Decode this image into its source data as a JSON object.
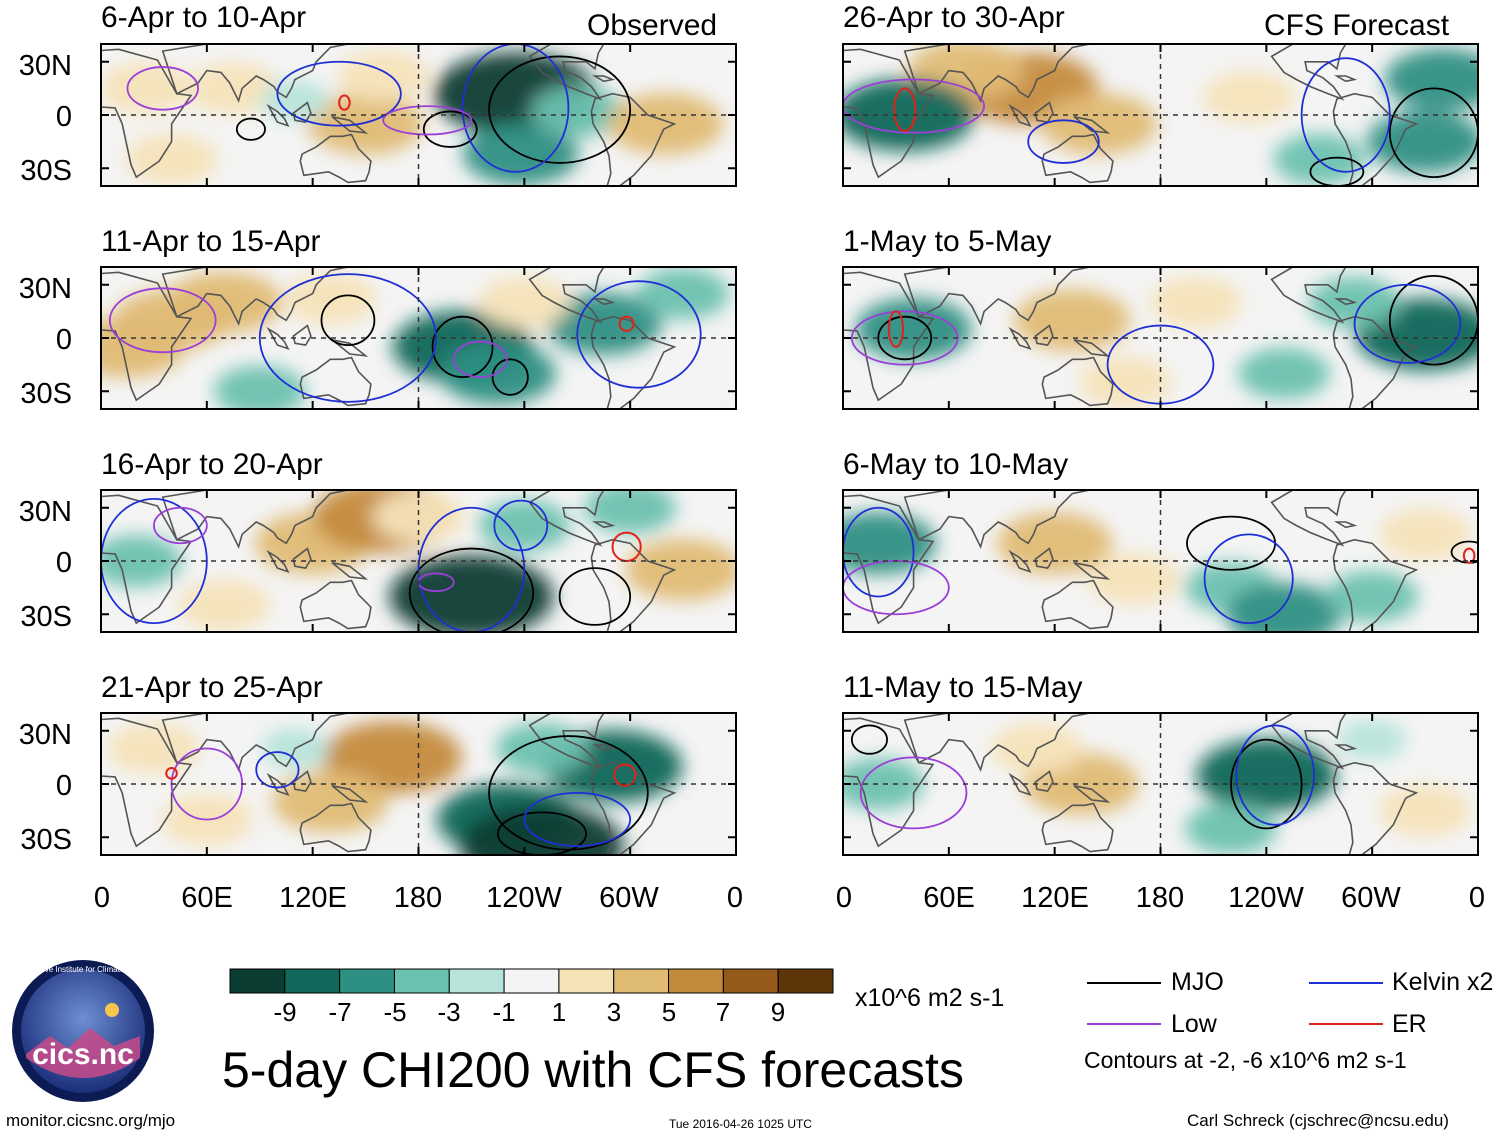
{
  "figure_title": "5-day CHI200 with CFS forecasts",
  "left_column_label": "Observed",
  "right_column_label": "CFS Forecast",
  "units_label": "x10^6 m2 s-1",
  "footer": {
    "url": "monitor.cicsnc.org/mjo",
    "timestamp": "Tue 2016-04-26 1025 UTC",
    "author": "Carl Schreck (cjschrec@ncsu.edu)"
  },
  "logo": {
    "text": "cics.nc",
    "ring_text": "Cooperative Institute for Climate and Satellites"
  },
  "legend": {
    "items": [
      {
        "label": "MJO",
        "color": "#000000"
      },
      {
        "label": "Kelvin x2",
        "color": "#1f2fd6"
      },
      {
        "label": "Low",
        "color": "#9b3fd8"
      },
      {
        "label": "ER",
        "color": "#e0221a"
      }
    ],
    "note": "Contours at -2, -6 x10^6 m2 s-1"
  },
  "colors": {
    "land": "#555555",
    "equator": "#333333",
    "colorbar": [
      "#0b3d33",
      "#11675a",
      "#2e8f83",
      "#6bc1b0",
      "#b6e4da",
      "#f4f4f4",
      "#f5e3b8",
      "#e0bb74",
      "#c48a3c",
      "#955a19",
      "#5e3409"
    ]
  },
  "chart_data": {
    "type": "heatmap",
    "variable": "CHI200 (200-hPa velocity potential anomaly)",
    "x_tick_labels": [
      "0",
      "60E",
      "120E",
      "180",
      "120W",
      "60W",
      "0"
    ],
    "x_tick_values_deg_east": [
      0,
      60,
      120,
      180,
      240,
      300,
      360
    ],
    "y_tick_labels": [
      "30N",
      "0",
      "30S"
    ],
    "y_tick_values_deg": [
      30,
      0,
      -30
    ],
    "ylim": [
      -40,
      40
    ],
    "xlim": [
      0,
      360
    ],
    "colorbar": {
      "tick_labels": [
        "-9",
        "-7",
        "-5",
        "-3",
        "-1",
        "1",
        "3",
        "5",
        "7",
        "9"
      ],
      "levels": [
        -9,
        -7,
        -5,
        -3,
        -1,
        1,
        3,
        5,
        7,
        9
      ]
    },
    "panels": [
      {
        "title": "6-Apr to 10-Apr",
        "column": "Observed",
        "anomalies": [
          {
            "lon": 25,
            "lat": 15,
            "value": 3
          },
          {
            "lon": 75,
            "lat": 15,
            "value": 3
          },
          {
            "lon": 150,
            "lat": -5,
            "value": 5
          },
          {
            "lon": 160,
            "lat": 22,
            "value": 3
          },
          {
            "lon": 235,
            "lat": 12,
            "value": -9
          },
          {
            "lon": 238,
            "lat": -22,
            "value": -5
          },
          {
            "lon": 270,
            "lat": 2,
            "value": -3
          },
          {
            "lon": 320,
            "lat": -5,
            "value": 5
          },
          {
            "lon": 110,
            "lat": 8,
            "value": -1
          },
          {
            "lon": 40,
            "lat": -25,
            "value": 3
          }
        ],
        "contours": [
          {
            "type": "MJO",
            "lon": 260,
            "lat": 3,
            "rx": 40,
            "ry": 30
          },
          {
            "type": "MJO",
            "lon": 198,
            "lat": -8,
            "rx": 15,
            "ry": 10
          },
          {
            "type": "MJO",
            "lon": 85,
            "lat": -8,
            "rx": 8,
            "ry": 6
          },
          {
            "type": "Kelvin",
            "lon": 235,
            "lat": 4,
            "rx": 30,
            "ry": 36
          },
          {
            "type": "Kelvin",
            "lon": 135,
            "lat": 12,
            "rx": 35,
            "ry": 18
          },
          {
            "type": "Low",
            "lon": 185,
            "lat": -3,
            "rx": 25,
            "ry": 8
          },
          {
            "type": "Low",
            "lon": 35,
            "lat": 15,
            "rx": 20,
            "ry": 12
          },
          {
            "type": "ER",
            "lon": 138,
            "lat": 7,
            "rx": 3,
            "ry": 4
          }
        ]
      },
      {
        "title": "11-Apr to 15-Apr",
        "column": "Observed",
        "anomalies": [
          {
            "lon": 40,
            "lat": 10,
            "value": 5
          },
          {
            "lon": 70,
            "lat": 20,
            "value": 5
          },
          {
            "lon": 15,
            "lat": -5,
            "value": 5
          },
          {
            "lon": 130,
            "lat": 22,
            "value": 3
          },
          {
            "lon": 205,
            "lat": -5,
            "value": -7
          },
          {
            "lon": 225,
            "lat": -20,
            "value": -5
          },
          {
            "lon": 285,
            "lat": 8,
            "value": -5
          },
          {
            "lon": 330,
            "lat": 25,
            "value": -3
          },
          {
            "lon": 90,
            "lat": -30,
            "value": -3
          },
          {
            "lon": 240,
            "lat": 20,
            "value": 3
          }
        ],
        "contours": [
          {
            "type": "MJO",
            "lon": 205,
            "lat": -5,
            "rx": 17,
            "ry": 17
          },
          {
            "type": "MJO",
            "lon": 140,
            "lat": 10,
            "rx": 15,
            "ry": 14
          },
          {
            "type": "MJO",
            "lon": 232,
            "lat": -22,
            "rx": 10,
            "ry": 10
          },
          {
            "type": "Kelvin",
            "lon": 305,
            "lat": 2,
            "rx": 35,
            "ry": 30
          },
          {
            "type": "Kelvin",
            "lon": 140,
            "lat": 0,
            "rx": 50,
            "ry": 36
          },
          {
            "type": "Low",
            "lon": 215,
            "lat": -12,
            "rx": 15,
            "ry": 10
          },
          {
            "type": "Low",
            "lon": 35,
            "lat": 10,
            "rx": 30,
            "ry": 18
          },
          {
            "type": "ER",
            "lon": 298,
            "lat": 8,
            "rx": 4,
            "ry": 4
          }
        ]
      },
      {
        "title": "16-Apr to 20-Apr",
        "column": "Observed",
        "anomalies": [
          {
            "lon": 120,
            "lat": 10,
            "value": 5
          },
          {
            "lon": 160,
            "lat": 25,
            "value": 7
          },
          {
            "lon": 210,
            "lat": -20,
            "value": -9
          },
          {
            "lon": 240,
            "lat": 20,
            "value": -3
          },
          {
            "lon": 330,
            "lat": -5,
            "value": 5
          },
          {
            "lon": 20,
            "lat": 0,
            "value": -3
          },
          {
            "lon": 70,
            "lat": -25,
            "value": 3
          },
          {
            "lon": 300,
            "lat": 30,
            "value": -3
          },
          {
            "lon": 180,
            "lat": 25,
            "value": 3
          }
        ],
        "contours": [
          {
            "type": "MJO",
            "lon": 210,
            "lat": -18,
            "rx": 35,
            "ry": 25
          },
          {
            "type": "MJO",
            "lon": 280,
            "lat": -20,
            "rx": 20,
            "ry": 16
          },
          {
            "type": "Kelvin",
            "lon": 210,
            "lat": -5,
            "rx": 30,
            "ry": 35
          },
          {
            "type": "Kelvin",
            "lon": 30,
            "lat": 0,
            "rx": 30,
            "ry": 35
          },
          {
            "type": "Kelvin",
            "lon": 238,
            "lat": 20,
            "rx": 15,
            "ry": 14
          },
          {
            "type": "Low",
            "lon": 190,
            "lat": -12,
            "rx": 10,
            "ry": 5
          },
          {
            "type": "Low",
            "lon": 45,
            "lat": 20,
            "rx": 15,
            "ry": 10
          },
          {
            "type": "ER",
            "lon": 298,
            "lat": 8,
            "rx": 8,
            "ry": 8
          }
        ]
      },
      {
        "title": "21-Apr to 25-Apr",
        "column": "Observed",
        "anomalies": [
          {
            "lon": 165,
            "lat": 15,
            "value": 7
          },
          {
            "lon": 130,
            "lat": -10,
            "value": 5
          },
          {
            "lon": 30,
            "lat": 20,
            "value": 3
          },
          {
            "lon": 60,
            "lat": -20,
            "value": 3
          },
          {
            "lon": 230,
            "lat": -20,
            "value": -7
          },
          {
            "lon": 250,
            "lat": -35,
            "value": -9
          },
          {
            "lon": 290,
            "lat": 10,
            "value": -7
          },
          {
            "lon": 250,
            "lat": 20,
            "value": -3
          },
          {
            "lon": 110,
            "lat": 20,
            "value": -1
          }
        ],
        "contours": [
          {
            "type": "MJO",
            "lon": 265,
            "lat": -5,
            "rx": 45,
            "ry": 32
          },
          {
            "type": "MJO",
            "lon": 250,
            "lat": -28,
            "rx": 25,
            "ry": 12
          },
          {
            "type": "Kelvin",
            "lon": 100,
            "lat": 8,
            "rx": 12,
            "ry": 10
          },
          {
            "type": "Kelvin",
            "lon": 270,
            "lat": -20,
            "rx": 30,
            "ry": 15
          },
          {
            "type": "Low",
            "lon": 60,
            "lat": 0,
            "rx": 20,
            "ry": 20
          },
          {
            "type": "ER",
            "lon": 297,
            "lat": 5,
            "rx": 6,
            "ry": 6
          },
          {
            "type": "ER",
            "lon": 40,
            "lat": 6,
            "rx": 3,
            "ry": 3
          }
        ]
      },
      {
        "title": "26-Apr to 30-Apr",
        "column": "CFS Forecast",
        "anomalies": [
          {
            "lon": 105,
            "lat": 15,
            "value": 7
          },
          {
            "lon": 145,
            "lat": -5,
            "value": 5
          },
          {
            "lon": 70,
            "lat": 25,
            "value": 5
          },
          {
            "lon": 35,
            "lat": 0,
            "value": -7
          },
          {
            "lon": 330,
            "lat": -15,
            "value": -5
          },
          {
            "lon": 340,
            "lat": 20,
            "value": -5
          },
          {
            "lon": 230,
            "lat": 10,
            "value": 3
          },
          {
            "lon": 270,
            "lat": -25,
            "value": -3
          }
        ],
        "contours": [
          {
            "type": "MJO",
            "lon": 335,
            "lat": -10,
            "rx": 25,
            "ry": 25
          },
          {
            "type": "MJO",
            "lon": 280,
            "lat": -32,
            "rx": 15,
            "ry": 8
          },
          {
            "type": "Kelvin",
            "lon": 285,
            "lat": 0,
            "rx": 25,
            "ry": 32
          },
          {
            "type": "Kelvin",
            "lon": 125,
            "lat": -15,
            "rx": 20,
            "ry": 12
          },
          {
            "type": "Low",
            "lon": 40,
            "lat": 5,
            "rx": 40,
            "ry": 15
          },
          {
            "type": "ER",
            "lon": 35,
            "lat": 3,
            "rx": 6,
            "ry": 12
          }
        ]
      },
      {
        "title": "1-May to 5-May",
        "column": "CFS Forecast",
        "anomalies": [
          {
            "lon": 130,
            "lat": 10,
            "value": 5
          },
          {
            "lon": 200,
            "lat": 20,
            "value": 3
          },
          {
            "lon": 330,
            "lat": 2,
            "value": -7
          },
          {
            "lon": 290,
            "lat": 20,
            "value": -3
          },
          {
            "lon": 40,
            "lat": 5,
            "value": -5
          },
          {
            "lon": 250,
            "lat": -20,
            "value": -3
          },
          {
            "lon": 160,
            "lat": -25,
            "value": 3
          }
        ],
        "contours": [
          {
            "type": "MJO",
            "lon": 335,
            "lat": 10,
            "rx": 25,
            "ry": 25
          },
          {
            "type": "MJO",
            "lon": 35,
            "lat": 0,
            "rx": 15,
            "ry": 12
          },
          {
            "type": "Kelvin",
            "lon": 320,
            "lat": 8,
            "rx": 30,
            "ry": 22
          },
          {
            "type": "Kelvin",
            "lon": 180,
            "lat": -15,
            "rx": 30,
            "ry": 22
          },
          {
            "type": "Low",
            "lon": 35,
            "lat": 0,
            "rx": 30,
            "ry": 15
          },
          {
            "type": "ER",
            "lon": 30,
            "lat": 5,
            "rx": 4,
            "ry": 10
          }
        ]
      },
      {
        "title": "6-May to 10-May",
        "column": "CFS Forecast",
        "anomalies": [
          {
            "lon": 120,
            "lat": 10,
            "value": 5
          },
          {
            "lon": 165,
            "lat": -10,
            "value": 3
          },
          {
            "lon": 20,
            "lat": 10,
            "value": -5
          },
          {
            "lon": 220,
            "lat": -15,
            "value": -3
          },
          {
            "lon": 250,
            "lat": -30,
            "value": -5
          },
          {
            "lon": 330,
            "lat": 15,
            "value": 3
          },
          {
            "lon": 300,
            "lat": -20,
            "value": -3
          }
        ],
        "contours": [
          {
            "type": "MJO",
            "lon": 220,
            "lat": 10,
            "rx": 25,
            "ry": 15
          },
          {
            "type": "MJO",
            "lon": 355,
            "lat": 5,
            "rx": 10,
            "ry": 6
          },
          {
            "type": "Kelvin",
            "lon": 230,
            "lat": -10,
            "rx": 25,
            "ry": 25
          },
          {
            "type": "Kelvin",
            "lon": 20,
            "lat": 5,
            "rx": 20,
            "ry": 25
          },
          {
            "type": "Low",
            "lon": 30,
            "lat": -15,
            "rx": 30,
            "ry": 15
          },
          {
            "type": "ER",
            "lon": 355,
            "lat": 3,
            "rx": 3,
            "ry": 4
          }
        ]
      },
      {
        "title": "11-May to 15-May",
        "column": "CFS Forecast",
        "anomalies": [
          {
            "lon": 135,
            "lat": 0,
            "value": 5
          },
          {
            "lon": 110,
            "lat": 20,
            "value": 3
          },
          {
            "lon": 240,
            "lat": 5,
            "value": -7
          },
          {
            "lon": 220,
            "lat": -25,
            "value": -3
          },
          {
            "lon": 20,
            "lat": 0,
            "value": -3
          },
          {
            "lon": 330,
            "lat": -15,
            "value": 3
          },
          {
            "lon": 300,
            "lat": 25,
            "value": -1
          }
        ],
        "contours": [
          {
            "type": "MJO",
            "lon": 240,
            "lat": 0,
            "rx": 20,
            "ry": 25
          },
          {
            "type": "Kelvin",
            "lon": 245,
            "lat": 5,
            "rx": 22,
            "ry": 28
          },
          {
            "type": "Low",
            "lon": 40,
            "lat": -5,
            "rx": 30,
            "ry": 20
          },
          {
            "type": "MJO",
            "lon": 15,
            "lat": 25,
            "rx": 10,
            "ry": 8
          }
        ]
      }
    ]
  }
}
